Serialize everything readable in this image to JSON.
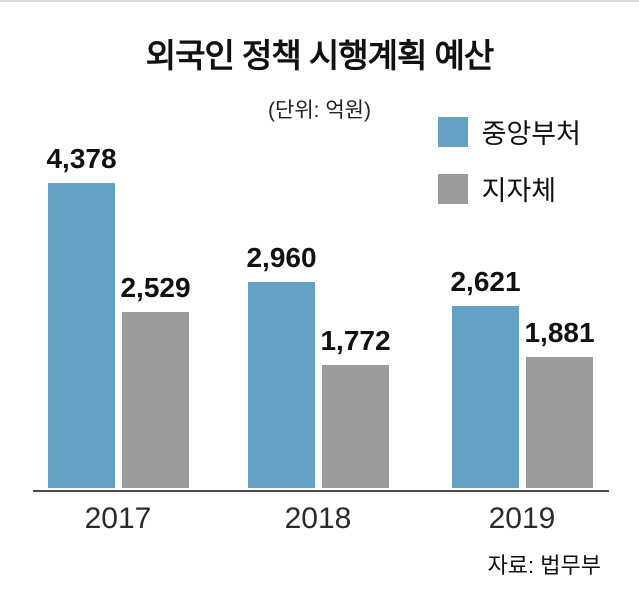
{
  "chart": {
    "title": "외국인 정책 시행계획 예산",
    "unit": "(단위: 억원)",
    "source": "자료: 법무부"
  },
  "chart_data": {
    "type": "bar",
    "title": "외국인 정책 시행계획 예산",
    "subtitle": "(단위: 억원)",
    "categories": [
      "2017",
      "2018",
      "2019"
    ],
    "series": [
      {
        "name": "중앙부처",
        "color": "#64a1c4",
        "values": [
          4378,
          2960,
          2621
        ]
      },
      {
        "name": "지자체",
        "color": "#9b9b9b",
        "values": [
          2529,
          1772,
          1881
        ]
      }
    ],
    "value_labels": {
      "central": [
        "4,378",
        "2,960",
        "2,621"
      ],
      "local": [
        "2,529",
        "1,772",
        "1,881"
      ]
    },
    "ylim": [
      0,
      4700
    ],
    "grid": false,
    "legend_position": "top-right",
    "source": "자료: 법무부"
  }
}
